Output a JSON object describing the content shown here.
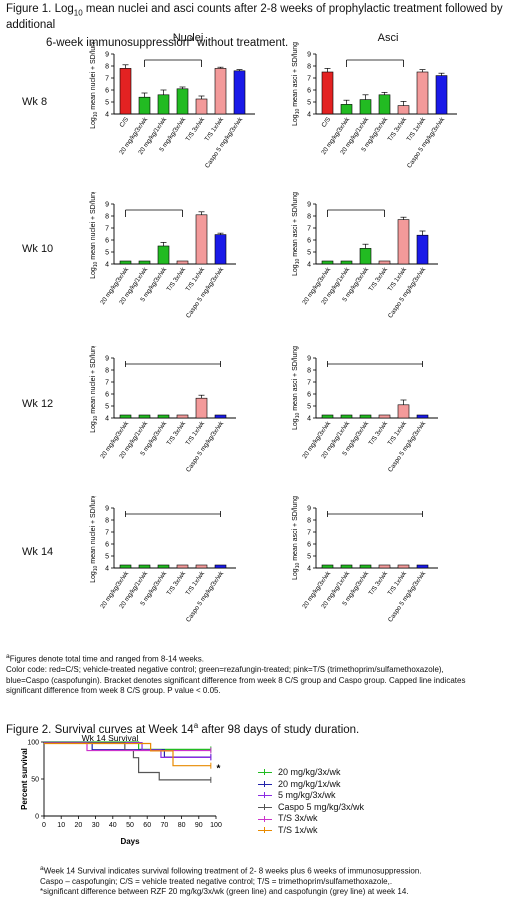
{
  "figure1": {
    "title_line1_pre": "Figure 1. Log",
    "title_sub": "10",
    "title_line1_post": " mean nuclei and asci counts after 2-8 weeks of prophylactic treatment followed by additional",
    "title_line2_pre": "6-week immunosuppression",
    "title_sup": "a",
    "title_line2_post": " without treatment.",
    "column_headers": [
      "Nuclei",
      "Asci"
    ],
    "row_labels": [
      "Wk 8",
      "Wk 10",
      "Wk 12",
      "Wk 14"
    ]
  },
  "colors": {
    "red": "#e32222",
    "green": "#22bb22",
    "pink": "#f39a9a",
    "blue": "#1a1ae8"
  },
  "chart_data": [
    {
      "type": "bar",
      "panel": "Wk 8 Nuclei",
      "ylabel": "Log10 mean nuclei + SD/lung",
      "ylim": [
        4,
        9
      ],
      "categories": [
        "C/S",
        "20 mg/kg/3x/wk",
        "20 mg/kg/1x/wk",
        "5 mg/kg/3x/wk",
        "T/S 3x/wk",
        "T/S 1x/wk",
        "Caspo 5 mg/kg/3x/wk"
      ],
      "colors": [
        "red",
        "green",
        "green",
        "green",
        "pink",
        "pink",
        "blue"
      ],
      "values": [
        7.8,
        5.4,
        5.6,
        6.1,
        5.25,
        7.8,
        7.6
      ],
      "errors": [
        0.3,
        0.35,
        0.4,
        0.15,
        0.25,
        0.1,
        0.1
      ],
      "bracket": {
        "from": 1,
        "to": 4,
        "capped": false
      }
    },
    {
      "type": "bar",
      "panel": "Wk 8 Asci",
      "ylabel": "Log10 mean asci + SD/lung",
      "ylim": [
        4,
        9
      ],
      "categories": [
        "C/S",
        "20 mg/kg/3x/wk",
        "20 mg/kg/1x/wk",
        "5 mg/kg/3x/wk",
        "T/S 3x/wk",
        "T/S 1x/wk",
        "Caspo 5 mg/kg/3x/wk"
      ],
      "colors": [
        "red",
        "green",
        "green",
        "green",
        "pink",
        "pink",
        "blue"
      ],
      "values": [
        7.5,
        4.8,
        5.2,
        5.6,
        4.7,
        7.5,
        7.2
      ],
      "errors": [
        0.3,
        0.35,
        0.4,
        0.2,
        0.35,
        0.2,
        0.2
      ],
      "bracket": {
        "from": 1,
        "to": 4,
        "capped": false
      }
    },
    {
      "type": "bar",
      "panel": "Wk 10 Nuclei",
      "ylabel": "Log10 mean nuclei + SD/lung",
      "ylim": [
        4,
        9
      ],
      "categories": [
        "20 mg/kg/3x/wk",
        "20 mg/kg/1x/wk",
        "5 mg/kg/3x/wk",
        "T/S 3x/wk",
        "T/S 1x/wk",
        "Caspo 5 mg/kg/3x/wk"
      ],
      "colors": [
        "green",
        "green",
        "green",
        "pink",
        "pink",
        "blue"
      ],
      "values": [
        4.25,
        4.25,
        5.5,
        4.25,
        8.1,
        6.45
      ],
      "errors": [
        0,
        0,
        0.3,
        0,
        0.25,
        0.12
      ],
      "bracket": {
        "from": 0,
        "to": 3,
        "capped": false
      }
    },
    {
      "type": "bar",
      "panel": "Wk 10 Asci",
      "ylabel": "Log10 mean asci + SD/lung",
      "ylim": [
        4,
        9
      ],
      "categories": [
        "20 mg/kg/3x/wk",
        "20 mg/kg/1x/wk",
        "5 mg/kg/3x/wk",
        "T/S 3x/wk",
        "T/S 1x/wk",
        "Caspo 5 mg/kg/3x/wk"
      ],
      "colors": [
        "green",
        "green",
        "green",
        "pink",
        "pink",
        "blue"
      ],
      "values": [
        4.25,
        4.25,
        5.3,
        4.25,
        7.7,
        6.4
      ],
      "errors": [
        0,
        0,
        0.35,
        0,
        0.2,
        0.35
      ],
      "bracket": {
        "from": 0,
        "to": 3,
        "capped": false
      }
    },
    {
      "type": "bar",
      "panel": "Wk 12 Nuclei",
      "ylabel": "Log10 mean nuclei + SD/lung",
      "ylim": [
        4,
        9
      ],
      "categories": [
        "20 mg/kg/3x/wk",
        "20 mg/kg/1x/wk",
        "5 mg/kg/3x/wk",
        "T/S 3x/wk",
        "T/S 1x/wk",
        "Caspo 5 mg/kg/3x/wk"
      ],
      "colors": [
        "green",
        "green",
        "green",
        "pink",
        "pink",
        "blue"
      ],
      "values": [
        4.25,
        4.25,
        4.25,
        4.25,
        5.65,
        4.25
      ],
      "errors": [
        0,
        0,
        0,
        0,
        0.25,
        0
      ],
      "bracket": {
        "from": 0,
        "to": 5,
        "capped": true
      }
    },
    {
      "type": "bar",
      "panel": "Wk 12 Asci",
      "ylabel": "Log10 mean asci + SD/lung",
      "ylim": [
        4,
        9
      ],
      "categories": [
        "20 mg/kg/3x/wk",
        "20 mg/kg/1x/wk",
        "5 mg/kg/3x/wk",
        "T/S 3x/wk",
        "T/S 1x/wk",
        "Caspo 5 mg/kg/3x/wk"
      ],
      "colors": [
        "green",
        "green",
        "green",
        "pink",
        "pink",
        "blue"
      ],
      "values": [
        4.25,
        4.25,
        4.25,
        4.25,
        5.1,
        4.25
      ],
      "errors": [
        0,
        0,
        0,
        0,
        0.4,
        0
      ],
      "bracket": {
        "from": 0,
        "to": 5,
        "capped": true
      }
    },
    {
      "type": "bar",
      "panel": "Wk 14 Nuclei",
      "ylabel": "Log10 mean nuclei + SD/lung",
      "ylim": [
        4,
        9
      ],
      "categories": [
        "20 mg/kg/3x/wk",
        "20 mg/kg/1x/wk",
        "5 mg/kg/3x/wk",
        "T/S 3x/wk",
        "T/S 1x/wk",
        "Caspo 5 mg/kg/3x/wk"
      ],
      "colors": [
        "green",
        "green",
        "green",
        "pink",
        "pink",
        "blue"
      ],
      "values": [
        4.25,
        4.25,
        4.25,
        4.25,
        4.25,
        4.25
      ],
      "errors": [
        0,
        0,
        0,
        0,
        0,
        0
      ],
      "bracket": {
        "from": 0,
        "to": 5,
        "capped": true
      }
    },
    {
      "type": "bar",
      "panel": "Wk 14 Asci",
      "ylabel": "Log10 mean asci + SD/lung",
      "ylim": [
        4,
        9
      ],
      "categories": [
        "20 mg/kg/3x/wk",
        "20 mg/kg/1x/wk",
        "5 mg/kg/3x/wk",
        "T/S 3x/wk",
        "T/S 1x/wk",
        "Caspo 5 mg/kg/3x/wk"
      ],
      "colors": [
        "green",
        "green",
        "green",
        "pink",
        "pink",
        "blue"
      ],
      "values": [
        4.25,
        4.25,
        4.25,
        4.25,
        4.25,
        4.25
      ],
      "errors": [
        0,
        0,
        0,
        0,
        0,
        0
      ],
      "bracket": {
        "from": 0,
        "to": 5,
        "capped": true
      }
    },
    {
      "type": "line",
      "panel": "Wk 14 Survival",
      "title": "Wk 14 Survival",
      "xlabel": "Days",
      "ylabel": "Percent survival",
      "xlim": [
        0,
        100
      ],
      "ylim": [
        0,
        100
      ],
      "xticks": [
        0,
        10,
        20,
        30,
        40,
        50,
        60,
        70,
        80,
        90,
        100
      ],
      "yticks": [
        0,
        50,
        100
      ],
      "series": [
        {
          "name": "20 mg/kg/3x/wk",
          "color": "#22bb22",
          "steps": [
            [
              0,
              100
            ],
            [
              55,
              90
            ],
            [
              97,
              90
            ]
          ]
        },
        {
          "name": "20 mg/kg/1x/wk",
          "color": "#2222aa",
          "steps": [
            [
              0,
              100
            ],
            [
              28,
              90
            ],
            [
              70,
              80
            ],
            [
              97,
              80
            ]
          ]
        },
        {
          "name": "5 mg/kg/3x/wk",
          "color": "#8a2be2",
          "steps": [
            [
              0,
              100
            ],
            [
              57,
              90
            ],
            [
              68,
              80
            ],
            [
              97,
              80
            ]
          ]
        },
        {
          "name": "Caspo 5 mg/kg/3x/wk",
          "color": "#555555",
          "steps": [
            [
              0,
              100
            ],
            [
              47,
              90
            ],
            [
              52,
              80
            ],
            [
              55,
              60
            ],
            [
              67,
              50
            ],
            [
              97,
              50
            ]
          ]
        },
        {
          "name": "T/S 3x/wk",
          "color": "#cc33cc",
          "steps": [
            [
              0,
              100
            ],
            [
              25,
              90
            ],
            [
              40,
              90
            ],
            [
              97,
              90
            ]
          ]
        },
        {
          "name": "T/S 1x/wk",
          "color": "#e88a00",
          "steps": [
            [
              0,
              100
            ],
            [
              62,
              90
            ],
            [
              75,
              70
            ],
            [
              97,
              70
            ]
          ]
        }
      ],
      "annotation": "*"
    }
  ],
  "notes": {
    "line1_sup": "a",
    "line1": "Figures denote total time and ranged from 8-14 weeks.",
    "line2": "Color code: red=C/S; vehicle-treated negative control; green=rezafungin-treated; pink=T/S  (trimethoprim/sulfamethoxazole),",
    "line3": "blue=Caspo (caspofungin).  Bracket denotes significant difference from week 8 C/S group and Caspo group.  Capped line indicates",
    "line4": "significant difference from week 8 C/S group.  P value < 0.05."
  },
  "figure2": {
    "title_pre": "Figure 2. Survival curves at Week 14",
    "title_sup": "a",
    "title_post": " after 98 days of study duration.",
    "foot_sup": "a",
    "foot1": "Week 14 Survival indicates survival following treatment of 2- 8 weeks plus 6 weeks of immunosuppression.",
    "foot2": "Caspo – caspofungin; C/S = vehicle treated negative control; T/S = trimethoprim/sulfamethoxazole,.",
    "foot3": "*significant difference between RZF 20 mg/kg/3x/wk (green line) and caspofungin (grey line) at week 14."
  }
}
